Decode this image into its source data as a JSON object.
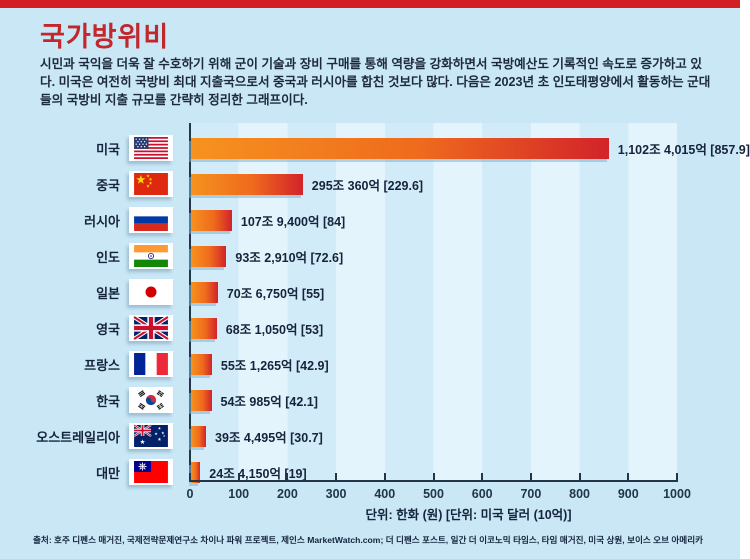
{
  "page": {
    "title": "국가방위비",
    "intro": "시민과 국익을 더욱 잘 수호하기 위해 군이 기술과 장비 구매를 통해 역량을 강화하면서 국방예산도 기록적인 속도로 증가하고 있다. 미국은 여전히 국방비 최대 지출국으로서 중국과 러시아를 합친 것보다 많다. 다음은 2023년 초 인도태평양에서 활동하는 군대들의 국방비 지출 규모를 간략히 정리한 그래프이다.",
    "source": "출처: 호주 디펜스 매거진, 국제전략문제연구소 차이나 파워 프로젝트, 제인스 MarketWatch.com; 더 디펜스 포스트, 일간 더 이코노믹 타임스, 타임 매거진, 미국 상원, 보이스 오브 아메리카",
    "accent_red": "#d21f26",
    "background": "#c9e7f5"
  },
  "chart_data": {
    "type": "bar",
    "orientation": "horizontal",
    "title": "국가방위비",
    "unit_label": "단위: 한화 (원) [단위: 미국 달러 (10억)]",
    "xlim": [
      0,
      1000
    ],
    "x_ticks": [
      0,
      100,
      200,
      300,
      400,
      500,
      600,
      700,
      800,
      900,
      1000
    ],
    "grid": "alternating vertical bands every 100 units",
    "bar_gradient": [
      "#f6921e",
      "#d2232a"
    ],
    "categories": [
      "미국",
      "중국",
      "러시아",
      "인도",
      "일본",
      "영국",
      "프랑스",
      "한국",
      "오스트레일리아",
      "대만"
    ],
    "values": [
      857.9,
      229.6,
      84,
      72.6,
      55,
      53,
      42.9,
      42.1,
      30.7,
      19
    ],
    "rows": [
      {
        "country": "미국",
        "flag": "usa",
        "value": 857.9,
        "label": "1,102조 4,015억 [857.9]"
      },
      {
        "country": "중국",
        "flag": "china",
        "value": 229.6,
        "label": "295조 360억 [229.6]"
      },
      {
        "country": "러시아",
        "flag": "russia",
        "value": 84,
        "label": "107조 9,400억 [84]"
      },
      {
        "country": "인도",
        "flag": "india",
        "value": 72.6,
        "label": "93조 2,910억 [72.6]"
      },
      {
        "country": "일본",
        "flag": "japan",
        "value": 55,
        "label": "70조 6,750억 [55]"
      },
      {
        "country": "영국",
        "flag": "uk",
        "value": 53,
        "label": "68조 1,050억 [53]"
      },
      {
        "country": "프랑스",
        "flag": "france",
        "value": 42.9,
        "label": "55조 1,265억 [42.9]"
      },
      {
        "country": "한국",
        "flag": "korea",
        "value": 42.1,
        "label": "54조 985억 [42.1]"
      },
      {
        "country": "오스트레일리아",
        "flag": "australia",
        "value": 30.7,
        "label": "39조 4,495억 [30.7]"
      },
      {
        "country": "대만",
        "flag": "taiwan",
        "value": 19,
        "label": "24조 4,150억 [19]"
      }
    ]
  }
}
